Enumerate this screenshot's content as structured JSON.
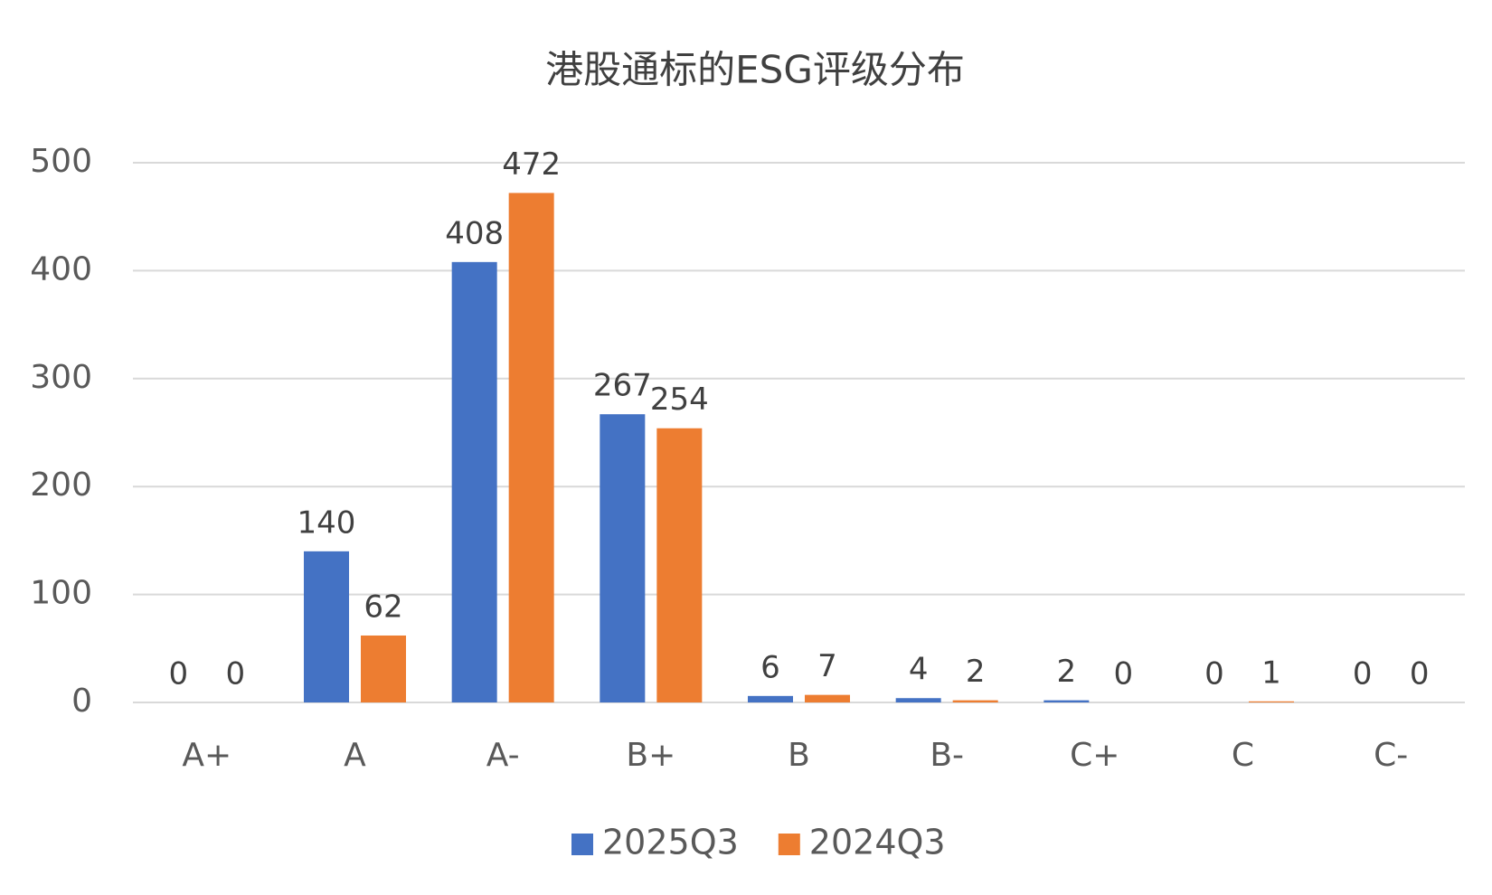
{
  "chart_data": {
    "type": "bar",
    "title": "港股通标的ESG评级分布",
    "categories": [
      "A+",
      "A",
      "A-",
      "B+",
      "B",
      "B-",
      "C+",
      "C",
      "C-"
    ],
    "series": [
      {
        "name": "2025Q3",
        "color": "#4472c4",
        "values": [
          0,
          140,
          408,
          267,
          6,
          4,
          2,
          0,
          0
        ]
      },
      {
        "name": "2024Q3",
        "color": "#ed7d31",
        "values": [
          0,
          62,
          472,
          254,
          7,
          2,
          0,
          1,
          0
        ]
      }
    ],
    "ylim": [
      0,
      500
    ],
    "yticks": [
      0,
      100,
      200,
      300,
      400,
      500
    ],
    "grid": true,
    "legend": "bottom",
    "data_labels": true
  }
}
